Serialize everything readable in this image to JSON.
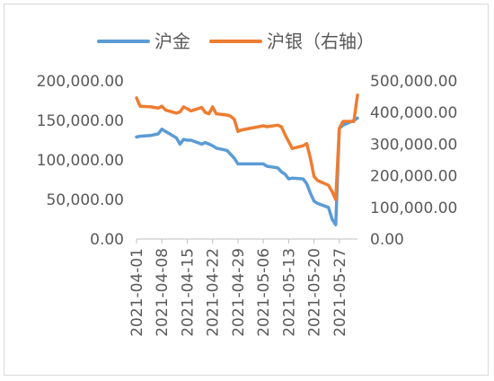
{
  "chart_data": {
    "type": "line",
    "title": "",
    "legend": {
      "position": "top"
    },
    "grid": false,
    "series": [
      {
        "name": "沪金",
        "axis": "left",
        "color": "#5B9BD5",
        "points": [
          [
            "2021-04-01",
            129000
          ],
          [
            "2021-04-02",
            130000
          ],
          [
            "2021-04-05",
            131000
          ],
          [
            "2021-04-06",
            132000
          ],
          [
            "2021-04-07",
            133000
          ],
          [
            "2021-04-08",
            139000
          ],
          [
            "2021-04-09",
            136000
          ],
          [
            "2021-04-12",
            128000
          ],
          [
            "2021-04-13",
            120000
          ],
          [
            "2021-04-14",
            126000
          ],
          [
            "2021-04-15",
            125000
          ],
          [
            "2021-04-16",
            125000
          ],
          [
            "2021-04-19",
            120000
          ],
          [
            "2021-04-20",
            122000
          ],
          [
            "2021-04-21",
            120000
          ],
          [
            "2021-04-22",
            118000
          ],
          [
            "2021-04-23",
            115000
          ],
          [
            "2021-04-26",
            112000
          ],
          [
            "2021-04-27",
            107000
          ],
          [
            "2021-04-28",
            102000
          ],
          [
            "2021-04-29",
            95000
          ],
          [
            "2021-04-30",
            95000
          ],
          [
            "2021-05-06",
            95000
          ],
          [
            "2021-05-07",
            92000
          ],
          [
            "2021-05-10",
            90000
          ],
          [
            "2021-05-11",
            85000
          ],
          [
            "2021-05-12",
            82000
          ],
          [
            "2021-05-13",
            76000
          ],
          [
            "2021-05-14",
            77000
          ],
          [
            "2021-05-17",
            76000
          ],
          [
            "2021-05-18",
            70000
          ],
          [
            "2021-05-19",
            58000
          ],
          [
            "2021-05-20",
            48000
          ],
          [
            "2021-05-21",
            45000
          ],
          [
            "2021-05-24",
            40000
          ],
          [
            "2021-05-25",
            25000
          ],
          [
            "2021-05-26",
            18000
          ],
          [
            "2021-05-27",
            140000
          ],
          [
            "2021-05-28",
            144000
          ],
          [
            "2021-05-31",
            150000
          ],
          [
            "2021-06-01",
            153000
          ]
        ]
      },
      {
        "name": "沪银（右轴）",
        "axis": "right",
        "color": "#ED7D31",
        "points": [
          [
            "2021-04-01",
            446000
          ],
          [
            "2021-04-02",
            420000
          ],
          [
            "2021-04-05",
            418000
          ],
          [
            "2021-04-06",
            416000
          ],
          [
            "2021-04-07",
            414000
          ],
          [
            "2021-04-08",
            420000
          ],
          [
            "2021-04-09",
            408000
          ],
          [
            "2021-04-12",
            398000
          ],
          [
            "2021-04-13",
            402000
          ],
          [
            "2021-04-14",
            418000
          ],
          [
            "2021-04-15",
            412000
          ],
          [
            "2021-04-16",
            405000
          ],
          [
            "2021-04-19",
            416000
          ],
          [
            "2021-04-20",
            400000
          ],
          [
            "2021-04-21",
            396000
          ],
          [
            "2021-04-22",
            418000
          ],
          [
            "2021-04-23",
            396000
          ],
          [
            "2021-04-26",
            392000
          ],
          [
            "2021-04-27",
            388000
          ],
          [
            "2021-04-28",
            378000
          ],
          [
            "2021-04-29",
            340000
          ],
          [
            "2021-04-30",
            345000
          ],
          [
            "2021-05-06",
            358000
          ],
          [
            "2021-05-07",
            355000
          ],
          [
            "2021-05-10",
            360000
          ],
          [
            "2021-05-11",
            355000
          ],
          [
            "2021-05-12",
            330000
          ],
          [
            "2021-05-13",
            308000
          ],
          [
            "2021-05-14",
            286000
          ],
          [
            "2021-05-17",
            295000
          ],
          [
            "2021-05-18",
            302000
          ],
          [
            "2021-05-19",
            255000
          ],
          [
            "2021-05-20",
            198000
          ],
          [
            "2021-05-21",
            185000
          ],
          [
            "2021-05-24",
            170000
          ],
          [
            "2021-05-25",
            150000
          ],
          [
            "2021-05-26",
            125000
          ],
          [
            "2021-05-27",
            350000
          ],
          [
            "2021-05-28",
            372000
          ],
          [
            "2021-05-31",
            372000
          ],
          [
            "2021-06-01",
            455000
          ]
        ]
      }
    ],
    "x_axis": {
      "type": "date",
      "range": [
        "2021-04-01",
        "2021-06-01"
      ],
      "tick_labels": [
        "2021-04-01",
        "2021-04-08",
        "2021-04-15",
        "2021-04-22",
        "2021-04-29",
        "2021-05-06",
        "2021-05-13",
        "2021-05-20",
        "2021-05-27"
      ],
      "label": ""
    },
    "y_axis_left": {
      "range": [
        0,
        200000
      ],
      "tick_labels": [
        "0.00",
        "50,000.00",
        "100,000.00",
        "150,000.00",
        "200,000.00"
      ],
      "label": ""
    },
    "y_axis_right": {
      "range": [
        0,
        500000
      ],
      "tick_labels": [
        "0.00",
        "100,000.00",
        "200,000.00",
        "300,000.00",
        "400,000.00",
        "500,000.00"
      ],
      "label": ""
    }
  }
}
